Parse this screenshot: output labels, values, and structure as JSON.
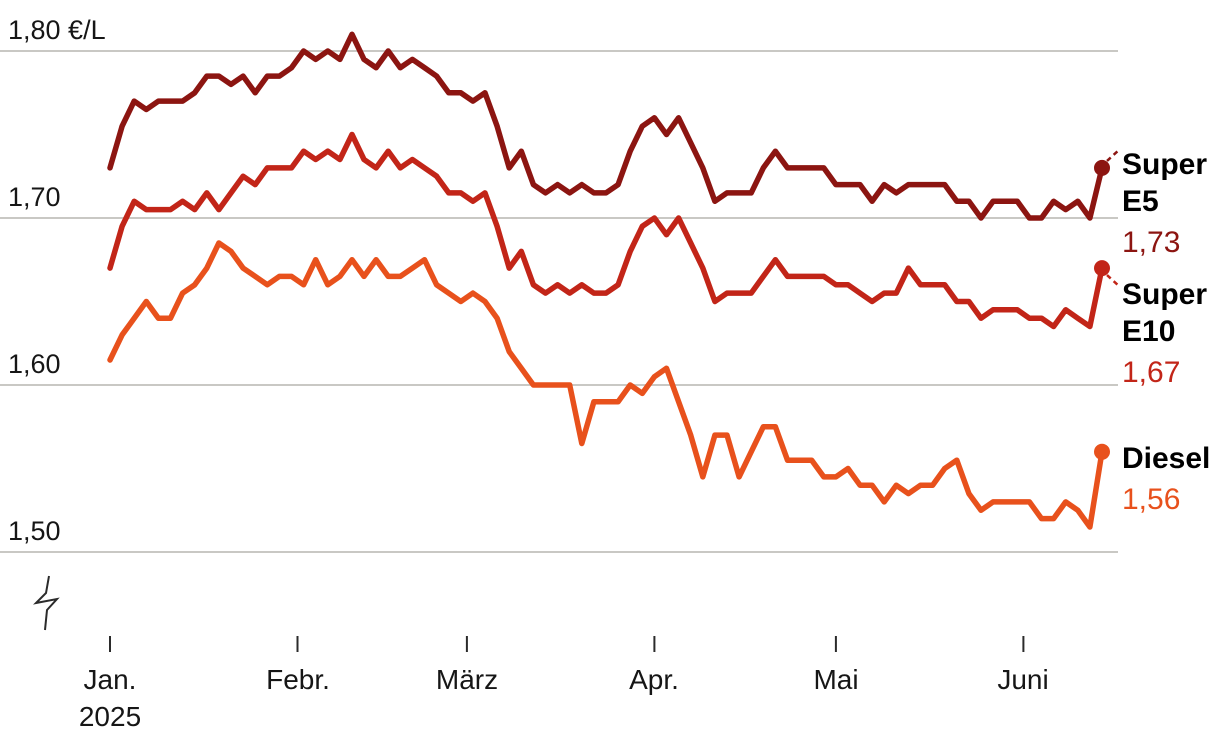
{
  "chart_data": {
    "type": "line",
    "title": "",
    "unit": "€/L",
    "grid": "horizontal-only",
    "grid_color": "#c9c8c4",
    "axis_color": "#2b2b2b",
    "legend_position": "right-of-line-ends",
    "y_axis": {
      "axis_break": true,
      "range": [
        1.497,
        1.815
      ],
      "ticks": [
        {
          "label": "1,80 €/L",
          "value": 1.8
        },
        {
          "label": "1,70",
          "value": 1.7
        },
        {
          "label": "1,60",
          "value": 1.6
        },
        {
          "label": "1,50",
          "value": 1.5
        }
      ]
    },
    "x_axis": {
      "start_day": 0,
      "end_day": 164,
      "sample_step_days": 2,
      "ticks": [
        {
          "label": "Jan.",
          "sublabel": "2025",
          "day": 0
        },
        {
          "label": "Febr.",
          "day": 31
        },
        {
          "label": "März",
          "day": 59
        },
        {
          "label": "Apr.",
          "day": 90
        },
        {
          "label": "Mai",
          "day": 120
        },
        {
          "label": "Juni",
          "day": 151
        }
      ]
    },
    "series": [
      {
        "key": "super-e5",
        "name": "Super E5",
        "label_lines": [
          "Super",
          "E5"
        ],
        "end_value_label": "1,73",
        "end_value": 1.73,
        "color": "#8c1511",
        "values": [
          1.73,
          1.755,
          1.77,
          1.765,
          1.77,
          1.77,
          1.77,
          1.775,
          1.785,
          1.785,
          1.78,
          1.785,
          1.775,
          1.785,
          1.785,
          1.79,
          1.8,
          1.795,
          1.8,
          1.795,
          1.81,
          1.795,
          1.79,
          1.8,
          1.79,
          1.795,
          1.79,
          1.785,
          1.775,
          1.775,
          1.77,
          1.775,
          1.755,
          1.73,
          1.74,
          1.72,
          1.715,
          1.72,
          1.715,
          1.72,
          1.715,
          1.715,
          1.72,
          1.74,
          1.755,
          1.76,
          1.75,
          1.76,
          1.745,
          1.73,
          1.71,
          1.715,
          1.715,
          1.715,
          1.73,
          1.74,
          1.73,
          1.73,
          1.73,
          1.73,
          1.72,
          1.72,
          1.72,
          1.71,
          1.72,
          1.715,
          1.72,
          1.72,
          1.72,
          1.72,
          1.71,
          1.71,
          1.7,
          1.71,
          1.71,
          1.71,
          1.7,
          1.7,
          1.71,
          1.705,
          1.71,
          1.7,
          1.73
        ]
      },
      {
        "key": "super-e10",
        "name": "Super E10",
        "label_lines": [
          "Super",
          "E10"
        ],
        "end_value_label": "1,67",
        "end_value": 1.67,
        "color": "#c22518",
        "values": [
          1.67,
          1.695,
          1.71,
          1.705,
          1.705,
          1.705,
          1.71,
          1.705,
          1.715,
          1.705,
          1.715,
          1.725,
          1.72,
          1.73,
          1.73,
          1.73,
          1.74,
          1.735,
          1.74,
          1.735,
          1.75,
          1.735,
          1.73,
          1.74,
          1.73,
          1.735,
          1.73,
          1.725,
          1.715,
          1.715,
          1.71,
          1.715,
          1.695,
          1.67,
          1.68,
          1.66,
          1.655,
          1.66,
          1.655,
          1.66,
          1.655,
          1.655,
          1.66,
          1.68,
          1.695,
          1.7,
          1.69,
          1.7,
          1.685,
          1.67,
          1.65,
          1.655,
          1.655,
          1.655,
          1.665,
          1.675,
          1.665,
          1.665,
          1.665,
          1.665,
          1.66,
          1.66,
          1.655,
          1.65,
          1.655,
          1.655,
          1.67,
          1.66,
          1.66,
          1.66,
          1.65,
          1.65,
          1.64,
          1.645,
          1.645,
          1.645,
          1.64,
          1.64,
          1.635,
          1.645,
          1.64,
          1.635,
          1.67
        ]
      },
      {
        "key": "diesel",
        "name": "Diesel",
        "label_lines": [
          "Diesel"
        ],
        "end_value_label": "1,56",
        "end_value": 1.56,
        "color": "#e8511c",
        "values": [
          1.615,
          1.63,
          1.64,
          1.65,
          1.64,
          1.64,
          1.655,
          1.66,
          1.67,
          1.685,
          1.68,
          1.67,
          1.665,
          1.66,
          1.665,
          1.665,
          1.66,
          1.675,
          1.66,
          1.665,
          1.675,
          1.665,
          1.675,
          1.665,
          1.665,
          1.67,
          1.675,
          1.66,
          1.655,
          1.65,
          1.655,
          1.65,
          1.64,
          1.62,
          1.61,
          1.6,
          1.6,
          1.6,
          1.6,
          1.565,
          1.59,
          1.59,
          1.59,
          1.6,
          1.595,
          1.605,
          1.61,
          1.59,
          1.57,
          1.545,
          1.57,
          1.57,
          1.545,
          1.56,
          1.575,
          1.575,
          1.555,
          1.555,
          1.555,
          1.545,
          1.545,
          1.55,
          1.54,
          1.54,
          1.53,
          1.54,
          1.535,
          1.54,
          1.54,
          1.55,
          1.555,
          1.535,
          1.525,
          1.53,
          1.53,
          1.53,
          1.53,
          1.52,
          1.52,
          1.53,
          1.525,
          1.515,
          1.56
        ]
      }
    ]
  }
}
